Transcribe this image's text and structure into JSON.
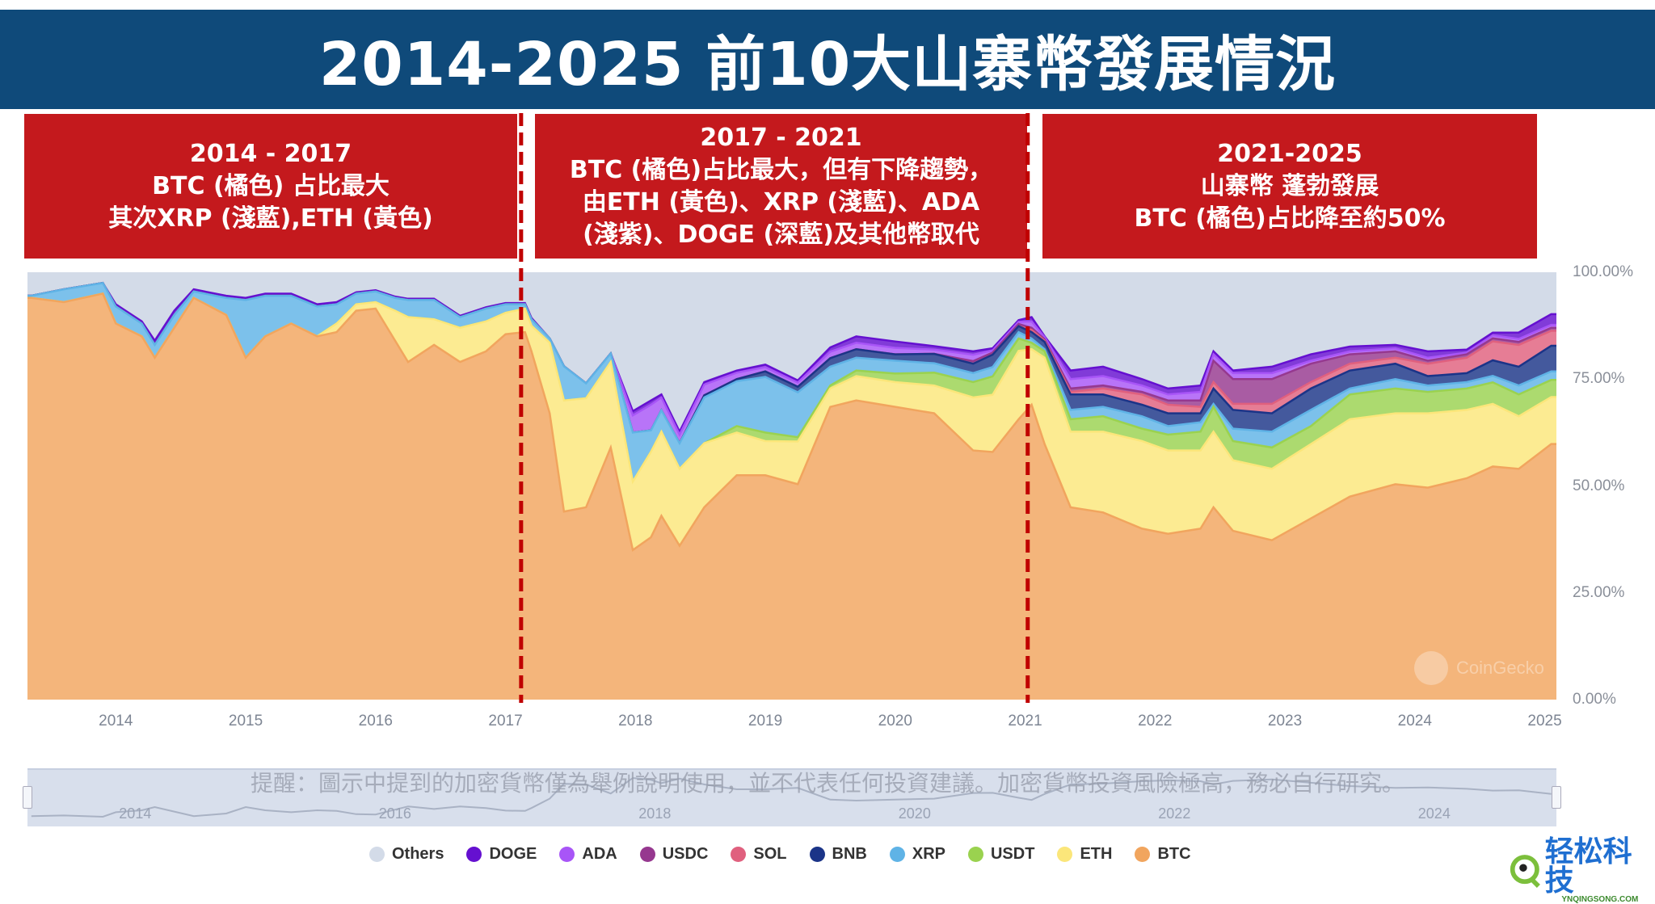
{
  "title": "2014-2025 前10大山寨幣發展情況",
  "boxes": [
    {
      "lines": [
        "2014 - 2017",
        "BTC (橘色) 占比最大",
        "其次XRP (淺藍),ETH (黃色)"
      ]
    },
    {
      "lines": [
        "2017 - 2021",
        "BTC (橘色)占比最大，但有下降趨勢，",
        "由ETH (黃色)、XRP (淺藍)、ADA",
        "(淺紫)、DOGE (深藍)及其他幣取代"
      ]
    },
    {
      "lines": [
        "2021-2025",
        "山寨幣 蓬勃發展",
        "BTC (橘色)占比降至約50%"
      ]
    }
  ],
  "disclaimer": "提醒：圖示中提到的加密貨幣僅為舉例說明使用，並不代表任何投資建議。加密貨幣投資風險極高，務必自行研究。",
  "watermark": "CoinGecko",
  "logo": {
    "text": "轻松科技",
    "sub": "YNQINGSONG.COM"
  },
  "navigator": {
    "years": [
      "2014",
      "2016",
      "2018",
      "2020",
      "2022",
      "2024"
    ]
  },
  "chart_data": {
    "type": "area",
    "stacked": true,
    "xlim": [
      2013.32,
      2025.09
    ],
    "ylim": [
      0,
      100
    ],
    "x_ticks": [
      "2014",
      "2015",
      "2016",
      "2017",
      "2018",
      "2019",
      "2020",
      "2021",
      "2022",
      "2023",
      "2024",
      "2025"
    ],
    "y_ticks": [
      "100.00%",
      "75.00%",
      "50.00%",
      "25.00%",
      "0.00%"
    ],
    "markers": [
      2017.12,
      2021.02
    ],
    "legend_position": "bottom",
    "legend": [
      {
        "name": "Others",
        "color": "#d3dbe8"
      },
      {
        "name": "DOGE",
        "color": "#6510d0"
      },
      {
        "name": "ADA",
        "color": "#a855f7"
      },
      {
        "name": "USDC",
        "color": "#96388f"
      },
      {
        "name": "SOL",
        "color": "#e0607e"
      },
      {
        "name": "BNB",
        "color": "#1b3488"
      },
      {
        "name": "XRP",
        "color": "#5fb3e6"
      },
      {
        "name": "USDT",
        "color": "#9ad24f"
      },
      {
        "name": "ETH",
        "color": "#fbe67a"
      },
      {
        "name": "BTC",
        "color": "#f1a55e"
      }
    ],
    "row_fields": [
      "date",
      "BTC",
      "ETH",
      "USDT",
      "XRP",
      "BNB",
      "SOL",
      "USDC",
      "ADA",
      "DOGE",
      "Others"
    ],
    "rows": [
      [
        2013.35,
        94,
        0,
        0,
        0.5,
        0,
        0,
        0,
        0,
        0,
        5.5
      ],
      [
        2013.6,
        93,
        0,
        0,
        3,
        0,
        0,
        0,
        0,
        0,
        4
      ],
      [
        2013.9,
        95,
        0,
        0,
        2.5,
        0,
        0,
        0,
        0,
        0,
        2.5
      ],
      [
        2014.0,
        88,
        0,
        0,
        4,
        0,
        0,
        0,
        0,
        0.5,
        7.5
      ],
      [
        2014.2,
        85,
        0,
        0,
        3,
        0,
        0,
        0,
        0,
        0.5,
        11.5
      ],
      [
        2014.3,
        80,
        0,
        0,
        3,
        0,
        0,
        0,
        0,
        1,
        16
      ],
      [
        2014.45,
        87,
        0,
        0,
        3,
        0,
        0,
        0,
        0,
        1,
        9
      ],
      [
        2014.6,
        94,
        0,
        0,
        1.5,
        0,
        0,
        0,
        0,
        0.5,
        4
      ],
      [
        2014.85,
        90,
        0,
        0,
        4,
        0,
        0,
        0,
        0,
        0.5,
        5.5
      ],
      [
        2015.0,
        80,
        0,
        0,
        13.5,
        0,
        0,
        0,
        0,
        0.5,
        6
      ],
      [
        2015.15,
        85,
        0,
        0,
        9.5,
        0,
        0,
        0,
        0,
        0.5,
        5
      ],
      [
        2015.35,
        88,
        0,
        0,
        6.5,
        0,
        0,
        0,
        0,
        0.5,
        5
      ],
      [
        2015.55,
        85,
        0,
        0,
        7,
        0,
        0,
        0,
        0,
        0.5,
        7.5
      ],
      [
        2015.7,
        86,
        2,
        0,
        4.5,
        0,
        0,
        0,
        0,
        0.5,
        7
      ],
      [
        2015.85,
        91,
        1.5,
        0,
        2.5,
        0,
        0,
        0,
        0,
        0.3,
        4.7
      ],
      [
        2016.0,
        91.5,
        1.5,
        0,
        2.5,
        0,
        0,
        0,
        0,
        0.3,
        4.2
      ],
      [
        2016.15,
        84,
        7,
        0,
        3,
        0,
        0,
        0,
        0,
        0.3,
        5.7
      ],
      [
        2016.25,
        79,
        10.5,
        0,
        4,
        0,
        0,
        0,
        0,
        0.3,
        6.2
      ],
      [
        2016.45,
        83,
        6,
        0,
        4.5,
        0,
        0,
        0,
        0,
        0.3,
        6.2
      ],
      [
        2016.65,
        79,
        8,
        0,
        2.5,
        0,
        0,
        0,
        0,
        0.3,
        10.2
      ],
      [
        2016.85,
        81.5,
        7,
        0,
        3,
        0,
        0,
        0,
        0,
        0.3,
        8.2
      ],
      [
        2017.0,
        85.5,
        5,
        0,
        2,
        0,
        0,
        0,
        0,
        0.3,
        7.2
      ],
      [
        2017.15,
        86,
        5.5,
        0,
        1,
        0,
        0,
        0,
        0,
        0.3,
        7.2
      ],
      [
        2017.2,
        81.5,
        6,
        0,
        1.5,
        0,
        0,
        0,
        0,
        0.3,
        10.7
      ],
      [
        2017.34,
        67,
        16.5,
        0,
        1,
        0,
        0,
        0,
        0,
        0,
        15.5
      ],
      [
        2017.45,
        44,
        26,
        0,
        8,
        0,
        0,
        0,
        0,
        0,
        22
      ],
      [
        2017.62,
        45,
        25.5,
        0,
        3.5,
        0,
        0,
        0,
        0,
        0,
        26
      ],
      [
        2017.81,
        59,
        20,
        0,
        2,
        0,
        0,
        0,
        0,
        0,
        19
      ],
      [
        2017.98,
        35,
        16,
        0,
        11.5,
        0,
        0,
        0,
        4,
        1,
        32.5
      ],
      [
        2018.12,
        38,
        20,
        0,
        5,
        0,
        0,
        0,
        6,
        1,
        30
      ],
      [
        2018.2,
        43,
        19.7,
        0,
        5,
        0,
        0,
        0,
        3,
        0.7,
        28.6
      ],
      [
        2018.34,
        36,
        18,
        0,
        6,
        0,
        0,
        0,
        2,
        0.7,
        37.3
      ],
      [
        2018.53,
        45,
        15,
        0,
        10.7,
        0.5,
        0,
        0,
        2.5,
        0.6,
        25.7
      ],
      [
        2018.78,
        52.5,
        10,
        1.5,
        10.5,
        0.5,
        0,
        0,
        1.5,
        0.5,
        23
      ],
      [
        2019.0,
        52.5,
        8,
        2,
        13,
        1.3,
        0,
        0,
        1,
        0.6,
        21.6
      ],
      [
        2019.25,
        50.4,
        10,
        1,
        10.5,
        1.3,
        0,
        0,
        1,
        0.5,
        25.3
      ],
      [
        2019.5,
        68.5,
        4.3,
        0.7,
        4.4,
        2,
        0,
        0,
        1.5,
        1,
        17.6
      ],
      [
        2019.7,
        70,
        5.7,
        1.3,
        3,
        2,
        0,
        0,
        1.5,
        1.5,
        15
      ],
      [
        2020.0,
        68.5,
        5.8,
        2,
        3,
        1.5,
        0,
        0,
        1.5,
        1.5,
        16.2
      ],
      [
        2020.3,
        67,
        6.5,
        3,
        2.2,
        2.2,
        0,
        0,
        1,
        0.8,
        17.3
      ],
      [
        2020.6,
        58.3,
        12.4,
        3.6,
        2.1,
        2.2,
        0,
        0.6,
        1.5,
        0.8,
        18.5
      ],
      [
        2020.75,
        58,
        13.4,
        4.3,
        2.2,
        2.9,
        0,
        0.5,
        0.5,
        0.5,
        17.8
      ],
      [
        2020.95,
        65.6,
        16,
        2.9,
        1.5,
        1.4,
        0,
        0.5,
        0.5,
        0.4,
        11.2
      ],
      [
        2021.05,
        69,
        13,
        1.5,
        1,
        1.5,
        0.5,
        0.5,
        1.5,
        1,
        10.5
      ],
      [
        2021.15,
        59.8,
        20.2,
        1.5,
        0.5,
        1.7,
        0.3,
        0.3,
        0.5,
        0.2,
        15
      ],
      [
        2021.35,
        45,
        17.7,
        2.9,
        2.2,
        3.6,
        0.6,
        0.8,
        2.2,
        2,
        23
      ],
      [
        2021.6,
        43.8,
        18.9,
        3.6,
        2.2,
        2.9,
        1.4,
        0.7,
        2.2,
        2.2,
        22.1
      ],
      [
        2021.9,
        40,
        20.5,
        2.9,
        2.9,
        2.7,
        2.4,
        0.6,
        1.5,
        1.5,
        25
      ],
      [
        2022.1,
        38.8,
        19.5,
        3.7,
        2,
        3,
        2,
        1,
        1.4,
        1.4,
        27.2
      ],
      [
        2022.35,
        40,
        18.3,
        4.4,
        2.2,
        2.1,
        1.5,
        1.5,
        2,
        1.5,
        26.5
      ],
      [
        2022.45,
        45,
        17.7,
        5.8,
        0.7,
        3.6,
        1.5,
        5,
        1.5,
        0.7,
        18.5
      ],
      [
        2022.6,
        39.5,
        16.5,
        4.5,
        2.9,
        4.4,
        1.4,
        5.8,
        1.4,
        0.6,
        23
      ],
      [
        2022.9,
        37.3,
        16.7,
        5,
        3.7,
        4.3,
        2.2,
        5.8,
        1.4,
        1.5,
        22.1
      ],
      [
        2023.2,
        42.4,
        17.4,
        4.2,
        3.8,
        5,
        1.5,
        4.3,
        0.7,
        1.5,
        19.2
      ],
      [
        2023.5,
        47.5,
        18.1,
        5.8,
        1.4,
        4.2,
        1.6,
        2.2,
        0.7,
        1.1,
        17.4
      ],
      [
        2023.85,
        50.4,
        16.6,
        5.8,
        2.2,
        3.6,
        1.4,
        1.5,
        0.7,
        0.8,
        17
      ],
      [
        2024.1,
        49.6,
        17.4,
        5,
        1.5,
        2.2,
        2.9,
        0.7,
        0.7,
        1.5,
        18.5
      ],
      [
        2024.4,
        51.8,
        16,
        5,
        1.5,
        2.1,
        3.6,
        0.8,
        0.4,
        0.7,
        18.1
      ],
      [
        2024.6,
        54,
        14.5,
        5,
        1.5,
        3.6,
        4.4,
        0.7,
        0.7,
        0.6,
        14
      ],
      [
        2024.8,
        54,
        12.3,
        5.1,
        2.1,
        4.4,
        5.1,
        0.7,
        0.7,
        1.5,
        14.1
      ],
      [
        2025.05,
        59.8,
        11,
        4,
        2,
        6,
        3.5,
        0.7,
        0.7,
        2.5,
        9.8
      ]
    ]
  }
}
